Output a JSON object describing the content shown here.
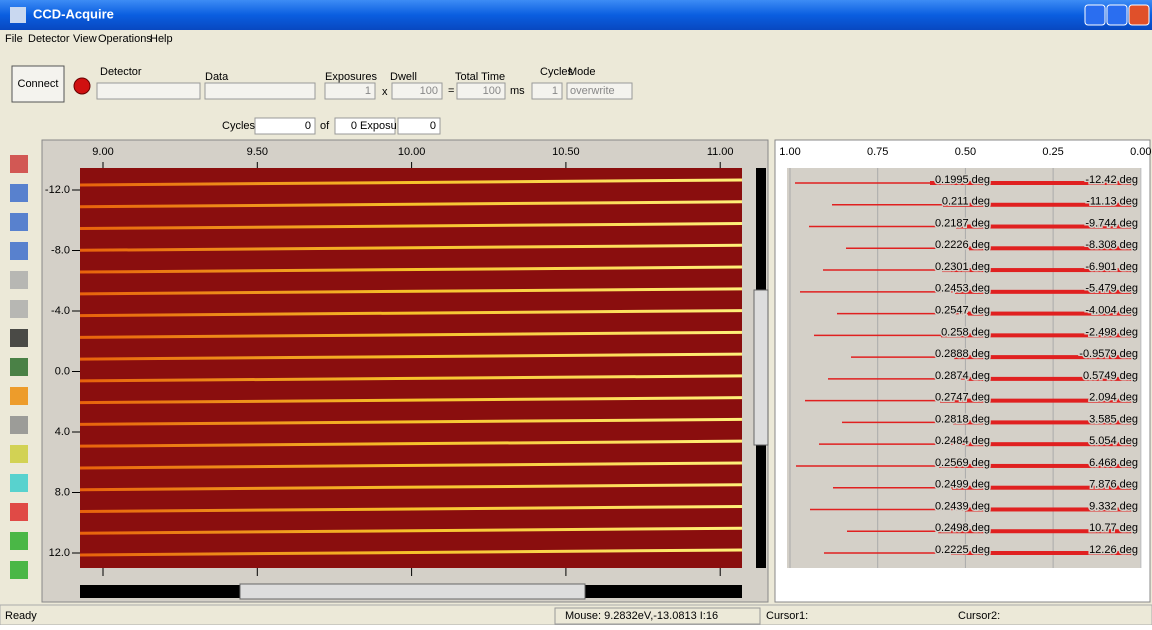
{
  "window": {
    "title": "CCD-Acquire"
  },
  "menu": [
    "File",
    "Detector",
    "View",
    "Operations",
    "Help"
  ],
  "toolbar": {
    "connect": "Connect",
    "labels": [
      "Detector",
      "Data",
      "Exposures",
      "Dwell",
      "Total Time",
      "Cycles",
      "Mode"
    ],
    "exposures": "1",
    "times": "x",
    "dwell": "100",
    "equals": "=",
    "total": "100",
    "unit": "ms",
    "cycles": "1",
    "mode": "overwrite"
  },
  "progress": {
    "cycles_label": "Cycles",
    "cycle": "0",
    "of": "of",
    "cycle_total": "0",
    "exposure_label": "Exposure",
    "exposure": "0"
  },
  "image": {
    "xticks": [
      "9.00",
      "9.50",
      "10.00",
      "10.50",
      "11.00"
    ],
    "yticks": [
      "-12.0",
      "-8.0",
      "-4.0",
      "0.0",
      "4.0",
      "8.0",
      "12.0"
    ]
  },
  "profile": {
    "xticks": [
      "1.00",
      "0.75",
      "0.50",
      "0.25",
      "0.00"
    ],
    "rows": [
      [
        "0.1995 deg",
        "-12.42 deg"
      ],
      [
        "0.211 deg",
        "-11.13 deg"
      ],
      [
        "0.2187 deg",
        "-9.744 deg"
      ],
      [
        "0.2226 deg",
        "-8.308 deg"
      ],
      [
        "0.2301 deg",
        "-6.901 deg"
      ],
      [
        "0.2453 deg",
        "-5.479 deg"
      ],
      [
        "0.2547 deg",
        "-4.004 deg"
      ],
      [
        "0.258 deg",
        "-2.498 deg"
      ],
      [
        "0.2888 deg",
        "-0.9579 deg"
      ],
      [
        "0.2874 deg",
        "0.5749 deg"
      ],
      [
        "0.2747 deg",
        "2.094 deg"
      ],
      [
        "0.2818 deg",
        "3.585 deg"
      ],
      [
        "0.2484 deg",
        "5.054 deg"
      ],
      [
        "0.2569 deg",
        "6.468 deg"
      ],
      [
        "0.2499 deg",
        "7.876 deg"
      ],
      [
        "0.2439 deg",
        "9.332 deg"
      ],
      [
        "0.2498 deg",
        "10.77 deg"
      ],
      [
        "0.2225 deg",
        "12.26 deg"
      ]
    ]
  },
  "status": {
    "ready": "Ready",
    "mouse": "Mouse:  9.2832eV,-13.0813  I:16",
    "cursor1": "Cursor1:",
    "cursor2": "Cursor2:"
  }
}
